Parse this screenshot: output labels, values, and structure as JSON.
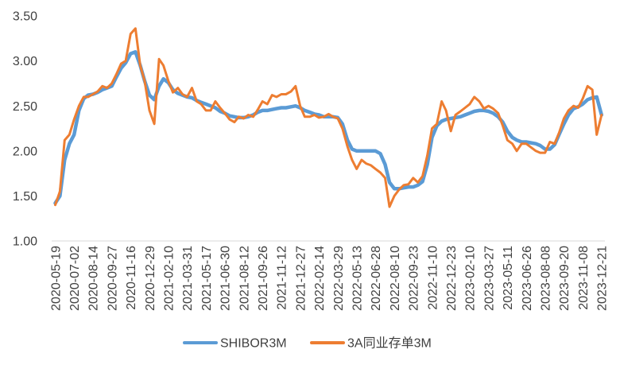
{
  "chart_data": {
    "type": "line",
    "x_ticks": [
      "2020-05-19",
      "2020-07-02",
      "2020-08-14",
      "2020-09-27",
      "2020-11-16",
      "2020-12-29",
      "2021-02-10",
      "2021-03-31",
      "2021-05-17",
      "2021-06-30",
      "2021-08-12",
      "2021-09-26",
      "2021-11-12",
      "2021-12-27",
      "2022-02-14",
      "2022-03-29",
      "2022-05-13",
      "2022-06-28",
      "2022-08-10",
      "2022-09-23",
      "2022-11-10",
      "2022-12-23",
      "2023-02-10",
      "2023-03-27",
      "2023-05-11",
      "2023-06-26",
      "2023-08-08",
      "2023-09-20",
      "2023-11-08",
      "2023-12-21"
    ],
    "y_ticks": [
      "1.00",
      "1.50",
      "2.00",
      "2.50",
      "3.00",
      "3.50"
    ],
    "ylim": [
      1.0,
      3.5
    ],
    "grid": false,
    "legend_position": "bottom",
    "series": [
      {
        "name": "SHIBOR3M",
        "color": "#5B9BD5",
        "points": [
          [
            "2020-05-19",
            1.42
          ],
          [
            "2020-05-30",
            1.5
          ],
          [
            "2020-06-10",
            1.9
          ],
          [
            "2020-06-21",
            2.08
          ],
          [
            "2020-07-02",
            2.18
          ],
          [
            "2020-07-13",
            2.45
          ],
          [
            "2020-07-24",
            2.58
          ],
          [
            "2020-08-03",
            2.62
          ],
          [
            "2020-08-14",
            2.63
          ],
          [
            "2020-08-25",
            2.65
          ],
          [
            "2020-09-05",
            2.68
          ],
          [
            "2020-09-16",
            2.7
          ],
          [
            "2020-09-27",
            2.72
          ],
          [
            "2020-10-09",
            2.82
          ],
          [
            "2020-10-22",
            2.92
          ],
          [
            "2020-11-03",
            2.98
          ],
          [
            "2020-11-16",
            3.08
          ],
          [
            "2020-11-27",
            3.1
          ],
          [
            "2020-12-08",
            2.95
          ],
          [
            "2020-12-18",
            2.78
          ],
          [
            "2020-12-29",
            2.62
          ],
          [
            "2021-01-09",
            2.57
          ],
          [
            "2021-01-20",
            2.72
          ],
          [
            "2021-01-30",
            2.8
          ],
          [
            "2021-02-10",
            2.76
          ],
          [
            "2021-02-22",
            2.68
          ],
          [
            "2021-03-07",
            2.64
          ],
          [
            "2021-03-19",
            2.62
          ],
          [
            "2021-03-31",
            2.6
          ],
          [
            "2021-04-12",
            2.59
          ],
          [
            "2021-04-24",
            2.56
          ],
          [
            "2021-05-05",
            2.54
          ],
          [
            "2021-05-17",
            2.52
          ],
          [
            "2021-05-28",
            2.5
          ],
          [
            "2021-06-08",
            2.48
          ],
          [
            "2021-06-19",
            2.44
          ],
          [
            "2021-06-30",
            2.42
          ],
          [
            "2021-07-11",
            2.39
          ],
          [
            "2021-07-22",
            2.38
          ],
          [
            "2021-08-01",
            2.37
          ],
          [
            "2021-08-12",
            2.37
          ],
          [
            "2021-08-23",
            2.38
          ],
          [
            "2021-09-04",
            2.4
          ],
          [
            "2021-09-15",
            2.43
          ],
          [
            "2021-09-26",
            2.45
          ],
          [
            "2021-10-08",
            2.45
          ],
          [
            "2021-10-20",
            2.46
          ],
          [
            "2021-10-31",
            2.47
          ],
          [
            "2021-11-12",
            2.48
          ],
          [
            "2021-11-23",
            2.48
          ],
          [
            "2021-12-05",
            2.49
          ],
          [
            "2021-12-16",
            2.5
          ],
          [
            "2021-12-27",
            2.48
          ],
          [
            "2022-01-08",
            2.45
          ],
          [
            "2022-01-21",
            2.43
          ],
          [
            "2022-02-02",
            2.41
          ],
          [
            "2022-02-14",
            2.4
          ],
          [
            "2022-02-25",
            2.38
          ],
          [
            "2022-03-08",
            2.38
          ],
          [
            "2022-03-18",
            2.38
          ],
          [
            "2022-03-29",
            2.37
          ],
          [
            "2022-04-09",
            2.3
          ],
          [
            "2022-04-21",
            2.12
          ],
          [
            "2022-05-02",
            2.02
          ],
          [
            "2022-05-13",
            2.0
          ],
          [
            "2022-05-25",
            2.0
          ],
          [
            "2022-06-05",
            2.0
          ],
          [
            "2022-06-17",
            2.0
          ],
          [
            "2022-06-28",
            2.0
          ],
          [
            "2022-07-09",
            1.97
          ],
          [
            "2022-07-20",
            1.85
          ],
          [
            "2022-07-30",
            1.65
          ],
          [
            "2022-08-10",
            1.58
          ],
          [
            "2022-08-21",
            1.58
          ],
          [
            "2022-09-01",
            1.59
          ],
          [
            "2022-09-12",
            1.6
          ],
          [
            "2022-09-23",
            1.6
          ],
          [
            "2022-10-05",
            1.62
          ],
          [
            "2022-10-17",
            1.66
          ],
          [
            "2022-10-29",
            1.85
          ],
          [
            "2022-11-10",
            2.15
          ],
          [
            "2022-11-21",
            2.28
          ],
          [
            "2022-12-02",
            2.33
          ],
          [
            "2022-12-12",
            2.35
          ],
          [
            "2022-12-23",
            2.36
          ],
          [
            "2023-01-04",
            2.37
          ],
          [
            "2023-01-17",
            2.38
          ],
          [
            "2023-01-29",
            2.4
          ],
          [
            "2023-02-10",
            2.42
          ],
          [
            "2023-02-21",
            2.44
          ],
          [
            "2023-03-05",
            2.45
          ],
          [
            "2023-03-16",
            2.45
          ],
          [
            "2023-03-27",
            2.44
          ],
          [
            "2023-04-07",
            2.42
          ],
          [
            "2023-04-19",
            2.38
          ],
          [
            "2023-04-30",
            2.32
          ],
          [
            "2023-05-11",
            2.22
          ],
          [
            "2023-05-23",
            2.15
          ],
          [
            "2023-06-03",
            2.12
          ],
          [
            "2023-06-15",
            2.1
          ],
          [
            "2023-06-26",
            2.1
          ],
          [
            "2023-07-07",
            2.09
          ],
          [
            "2023-07-18",
            2.08
          ],
          [
            "2023-07-28",
            2.06
          ],
          [
            "2023-08-08",
            2.02
          ],
          [
            "2023-08-19",
            2.02
          ],
          [
            "2023-08-30",
            2.07
          ],
          [
            "2023-09-09",
            2.18
          ],
          [
            "2023-09-20",
            2.3
          ],
          [
            "2023-10-02",
            2.4
          ],
          [
            "2023-10-15",
            2.47
          ],
          [
            "2023-10-27",
            2.49
          ],
          [
            "2023-11-08",
            2.52
          ],
          [
            "2023-11-19",
            2.57
          ],
          [
            "2023-11-30",
            2.59
          ],
          [
            "2023-12-10",
            2.6
          ],
          [
            "2023-12-21",
            2.4
          ]
        ]
      },
      {
        "name": "3A同业存单3M",
        "color": "#ED7D31",
        "points": [
          [
            "2020-05-19",
            1.4
          ],
          [
            "2020-05-30",
            1.55
          ],
          [
            "2020-06-10",
            2.12
          ],
          [
            "2020-06-21",
            2.18
          ],
          [
            "2020-07-02",
            2.35
          ],
          [
            "2020-07-13",
            2.5
          ],
          [
            "2020-07-24",
            2.6
          ],
          [
            "2020-08-03",
            2.6
          ],
          [
            "2020-08-14",
            2.63
          ],
          [
            "2020-08-25",
            2.66
          ],
          [
            "2020-09-05",
            2.72
          ],
          [
            "2020-09-16",
            2.7
          ],
          [
            "2020-09-27",
            2.75
          ],
          [
            "2020-10-09",
            2.85
          ],
          [
            "2020-10-22",
            2.97
          ],
          [
            "2020-11-03",
            3.0
          ],
          [
            "2020-11-16",
            3.3
          ],
          [
            "2020-11-27",
            3.36
          ],
          [
            "2020-12-08",
            2.95
          ],
          [
            "2020-12-18",
            2.78
          ],
          [
            "2020-12-29",
            2.45
          ],
          [
            "2021-01-09",
            2.3
          ],
          [
            "2021-01-20",
            3.02
          ],
          [
            "2021-01-30",
            2.95
          ],
          [
            "2021-02-10",
            2.78
          ],
          [
            "2021-02-22",
            2.65
          ],
          [
            "2021-03-07",
            2.7
          ],
          [
            "2021-03-19",
            2.63
          ],
          [
            "2021-03-31",
            2.6
          ],
          [
            "2021-04-12",
            2.7
          ],
          [
            "2021-04-24",
            2.55
          ],
          [
            "2021-05-05",
            2.52
          ],
          [
            "2021-05-17",
            2.45
          ],
          [
            "2021-05-28",
            2.45
          ],
          [
            "2021-06-08",
            2.55
          ],
          [
            "2021-06-19",
            2.48
          ],
          [
            "2021-06-30",
            2.42
          ],
          [
            "2021-07-11",
            2.35
          ],
          [
            "2021-07-22",
            2.32
          ],
          [
            "2021-08-01",
            2.38
          ],
          [
            "2021-08-12",
            2.36
          ],
          [
            "2021-08-23",
            2.4
          ],
          [
            "2021-09-04",
            2.38
          ],
          [
            "2021-09-15",
            2.46
          ],
          [
            "2021-09-26",
            2.55
          ],
          [
            "2021-10-08",
            2.52
          ],
          [
            "2021-10-20",
            2.62
          ],
          [
            "2021-10-31",
            2.6
          ],
          [
            "2021-11-12",
            2.63
          ],
          [
            "2021-11-23",
            2.63
          ],
          [
            "2021-12-05",
            2.66
          ],
          [
            "2021-12-16",
            2.72
          ],
          [
            "2021-12-27",
            2.5
          ],
          [
            "2022-01-08",
            2.38
          ],
          [
            "2022-01-21",
            2.38
          ],
          [
            "2022-02-02",
            2.4
          ],
          [
            "2022-02-14",
            2.37
          ],
          [
            "2022-02-25",
            2.38
          ],
          [
            "2022-03-08",
            2.41
          ],
          [
            "2022-03-18",
            2.38
          ],
          [
            "2022-03-29",
            2.36
          ],
          [
            "2022-04-09",
            2.25
          ],
          [
            "2022-04-21",
            2.05
          ],
          [
            "2022-05-02",
            1.9
          ],
          [
            "2022-05-13",
            1.8
          ],
          [
            "2022-05-25",
            1.9
          ],
          [
            "2022-06-05",
            1.86
          ],
          [
            "2022-06-17",
            1.84
          ],
          [
            "2022-06-28",
            1.8
          ],
          [
            "2022-07-09",
            1.76
          ],
          [
            "2022-07-20",
            1.7
          ],
          [
            "2022-07-30",
            1.38
          ],
          [
            "2022-08-10",
            1.5
          ],
          [
            "2022-08-21",
            1.57
          ],
          [
            "2022-09-01",
            1.62
          ],
          [
            "2022-09-12",
            1.63
          ],
          [
            "2022-09-23",
            1.7
          ],
          [
            "2022-10-05",
            1.65
          ],
          [
            "2022-10-17",
            1.72
          ],
          [
            "2022-10-29",
            1.95
          ],
          [
            "2022-11-10",
            2.25
          ],
          [
            "2022-11-21",
            2.3
          ],
          [
            "2022-12-02",
            2.55
          ],
          [
            "2022-12-12",
            2.45
          ],
          [
            "2022-12-23",
            2.22
          ],
          [
            "2023-01-04",
            2.4
          ],
          [
            "2023-01-17",
            2.44
          ],
          [
            "2023-01-29",
            2.48
          ],
          [
            "2023-02-10",
            2.52
          ],
          [
            "2023-02-21",
            2.6
          ],
          [
            "2023-03-05",
            2.55
          ],
          [
            "2023-03-16",
            2.47
          ],
          [
            "2023-03-27",
            2.5
          ],
          [
            "2023-04-07",
            2.47
          ],
          [
            "2023-04-19",
            2.42
          ],
          [
            "2023-04-30",
            2.28
          ],
          [
            "2023-05-11",
            2.12
          ],
          [
            "2023-05-23",
            2.08
          ],
          [
            "2023-06-03",
            2.0
          ],
          [
            "2023-06-15",
            2.08
          ],
          [
            "2023-06-26",
            2.08
          ],
          [
            "2023-07-07",
            2.04
          ],
          [
            "2023-07-18",
            2.0
          ],
          [
            "2023-07-28",
            1.98
          ],
          [
            "2023-08-08",
            1.98
          ],
          [
            "2023-08-19",
            2.1
          ],
          [
            "2023-08-30",
            2.08
          ],
          [
            "2023-09-09",
            2.2
          ],
          [
            "2023-09-20",
            2.36
          ],
          [
            "2023-10-02",
            2.45
          ],
          [
            "2023-10-15",
            2.5
          ],
          [
            "2023-10-27",
            2.48
          ],
          [
            "2023-11-08",
            2.58
          ],
          [
            "2023-11-19",
            2.72
          ],
          [
            "2023-11-30",
            2.68
          ],
          [
            "2023-12-10",
            2.18
          ],
          [
            "2023-12-21",
            2.4
          ]
        ]
      }
    ]
  }
}
